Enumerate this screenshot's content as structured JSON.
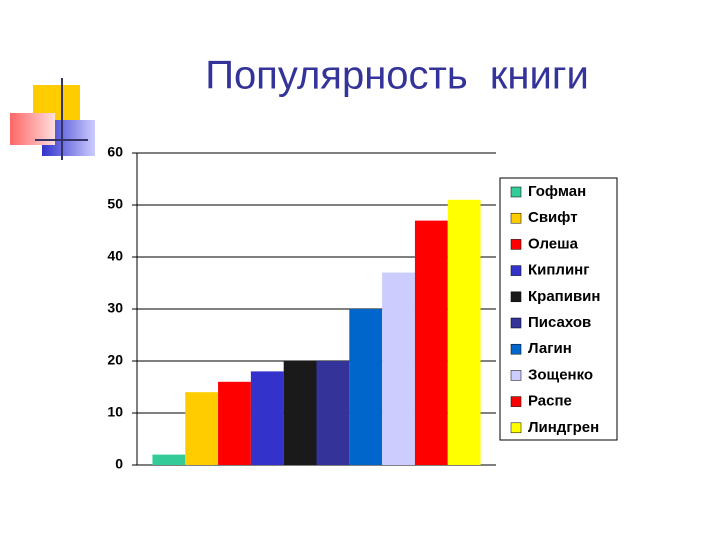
{
  "chart_data": {
    "type": "bar",
    "title": "Популярность  книги",
    "categories": [
      null
    ],
    "series": [
      {
        "name": "Гофман",
        "color": "#33cc99",
        "values": [
          2
        ]
      },
      {
        "name": "Свифт",
        "color": "#ffcc00",
        "values": [
          14
        ]
      },
      {
        "name": "Олеша",
        "color": "#ff0000",
        "values": [
          16
        ]
      },
      {
        "name": "Киплинг",
        "color": "#3333cc",
        "values": [
          18
        ]
      },
      {
        "name": "Крапивин",
        "color": "#1a1a1a",
        "values": [
          20
        ]
      },
      {
        "name": "Писахов",
        "color": "#333399",
        "values": [
          20
        ]
      },
      {
        "name": "Лагин",
        "color": "#0066cc",
        "values": [
          30
        ]
      },
      {
        "name": "Зощенко",
        "color": "#ccccff",
        "values": [
          37
        ]
      },
      {
        "name": "Распе",
        "color": "#ff0000",
        "values": [
          47
        ]
      },
      {
        "name": "Линдгрен",
        "color": "#ffff00",
        "values": [
          51
        ]
      }
    ],
    "ylim": [
      0,
      60
    ],
    "yticks": [
      0,
      10,
      20,
      30,
      40,
      50,
      60
    ],
    "grid": true,
    "legend": "right"
  }
}
